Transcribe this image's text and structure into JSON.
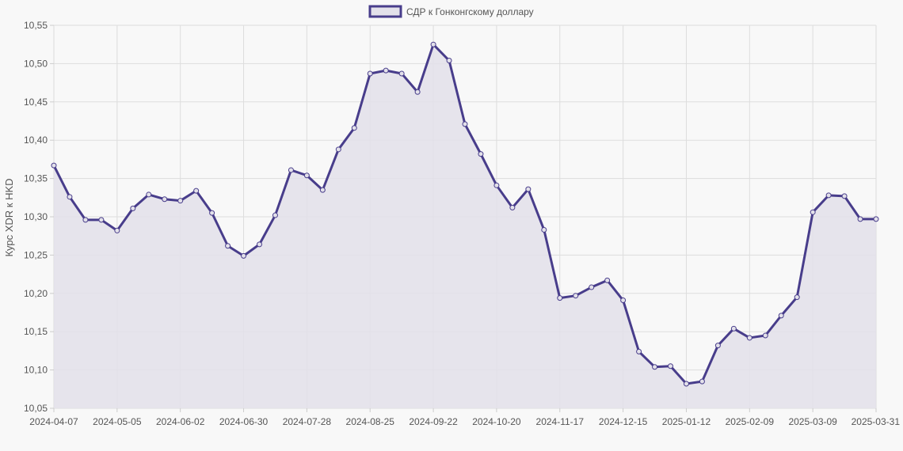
{
  "chart_data": {
    "type": "line",
    "legend": {
      "label": "СДР к Гонконгскому доллару",
      "position": "top-center"
    },
    "ylabel": "Курс XDR к HKD",
    "xlabel": "",
    "ylim": [
      10.05,
      10.55
    ],
    "y_ticks": [
      "10,05",
      "10,10",
      "10,15",
      "10,20",
      "10,25",
      "10,30",
      "10,35",
      "10,40",
      "10,45",
      "10,50",
      "10,55"
    ],
    "x_ticks": [
      "2024-04-07",
      "2024-05-05",
      "2024-06-02",
      "2024-06-30",
      "2024-07-28",
      "2024-08-25",
      "2024-09-22",
      "2024-10-20",
      "2024-11-17",
      "2024-12-15",
      "2025-01-12",
      "2025-02-09",
      "2025-03-09",
      "2025-03-31"
    ],
    "grid": true,
    "fill": true,
    "colors": {
      "line": "#483d8b",
      "fill": "#e3e1ea",
      "grid": "#dddddd"
    },
    "series": [
      {
        "name": "СДР к Гонконгскому доллару",
        "values": [
          10.367,
          10.326,
          10.296,
          10.296,
          10.282,
          10.311,
          10.329,
          10.323,
          10.321,
          10.334,
          10.305,
          10.262,
          10.249,
          10.264,
          10.302,
          10.361,
          10.354,
          10.335,
          10.388,
          10.416,
          10.487,
          10.491,
          10.487,
          10.463,
          10.525,
          10.504,
          10.421,
          10.382,
          10.341,
          10.312,
          10.336,
          10.283,
          10.194,
          10.197,
          10.208,
          10.217,
          10.191,
          10.124,
          10.104,
          10.105,
          10.082,
          10.085,
          10.132,
          10.154,
          10.142,
          10.145,
          10.171,
          10.195,
          10.306,
          10.328,
          10.327,
          10.297,
          10.297
        ]
      }
    ]
  }
}
